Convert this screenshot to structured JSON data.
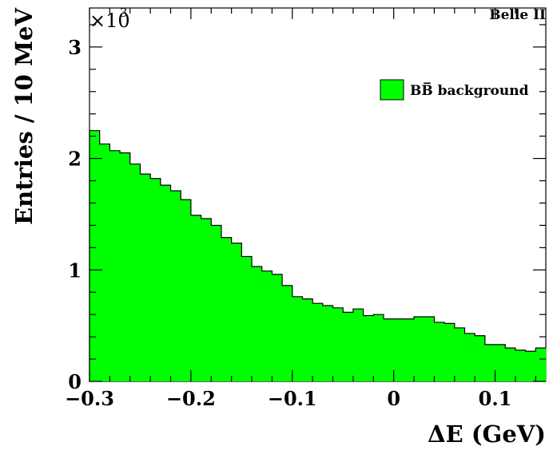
{
  "experiment_label": "Belle II",
  "chart_data": {
    "type": "histogram",
    "xlabel": "ΔE (GeV)",
    "ylabel": "Entries / 10 MeV",
    "y_multiplier_label": "×10",
    "y_multiplier_exponent": "3",
    "xlim": [
      -0.3,
      0.15
    ],
    "ylim": [
      0,
      3.35
    ],
    "x_ticks": [
      -0.3,
      -0.2,
      -0.1,
      0,
      0.1
    ],
    "x_tick_labels": [
      "−0.3",
      "−0.2",
      "−0.1",
      "0",
      "0.1"
    ],
    "y_ticks": [
      0,
      1,
      2,
      3
    ],
    "y_tick_labels": [
      "0",
      "1",
      "2",
      "3"
    ],
    "bin_width": 0.01,
    "series": [
      {
        "name": "BB̅ background",
        "color": "#00ff00",
        "x_edges_start": -0.3,
        "values": [
          2.25,
          2.13,
          2.07,
          2.05,
          1.95,
          1.86,
          1.82,
          1.76,
          1.71,
          1.63,
          1.49,
          1.46,
          1.4,
          1.29,
          1.24,
          1.12,
          1.03,
          0.99,
          0.96,
          0.86,
          0.76,
          0.74,
          0.7,
          0.68,
          0.66,
          0.62,
          0.65,
          0.59,
          0.6,
          0.56,
          0.56,
          0.56,
          0.58,
          0.58,
          0.53,
          0.52,
          0.48,
          0.43,
          0.41,
          0.33,
          0.33,
          0.3,
          0.28,
          0.27,
          0.3
        ]
      }
    ],
    "legend": {
      "position": "top-right",
      "entries": [
        "BB̅ background"
      ]
    },
    "grid": false
  }
}
